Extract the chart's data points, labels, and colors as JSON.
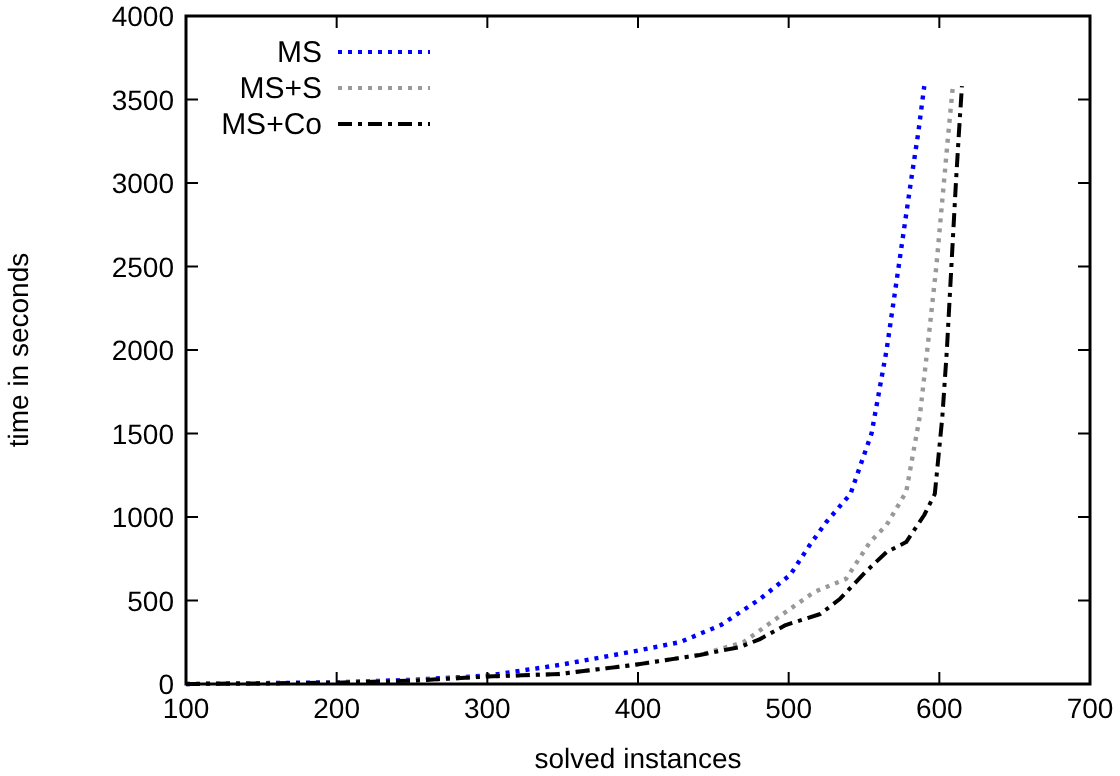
{
  "chart_data": {
    "type": "line",
    "xlabel": "solved instances",
    "ylabel": "time in seconds",
    "xlim": [
      100,
      700
    ],
    "ylim": [
      0,
      4000
    ],
    "xticks": [
      100,
      200,
      300,
      400,
      500,
      600,
      700
    ],
    "yticks": [
      0,
      500,
      1000,
      1500,
      2000,
      2500,
      3000,
      3500,
      4000
    ],
    "grid": false,
    "legend": "top left",
    "series": [
      {
        "name": "MS",
        "color": "#0000ff",
        "line_style": "dotted",
        "x": [
          100,
          200,
          250,
          300,
          348,
          400,
          428,
          455,
          481,
          501,
          514,
          525,
          541,
          555,
          565,
          573,
          581,
          586,
          590
        ],
        "values": [
          0,
          10,
          25,
          50,
          114,
          200,
          251,
          353,
          509,
          653,
          832,
          970,
          1138,
          1500,
          2000,
          2500,
          3000,
          3300,
          3580
        ]
      },
      {
        "name": "MS+S",
        "color": "#999999",
        "line_style": "dotted",
        "x": [
          100,
          200,
          250,
          300,
          348,
          397,
          441,
          470,
          490,
          517,
          538,
          554,
          565,
          578,
          587,
          592,
          598,
          603,
          606,
          609
        ],
        "values": [
          0,
          8,
          20,
          45,
          60,
          114,
          174,
          250,
          380,
          551,
          629,
          850,
          952,
          1150,
          1600,
          2000,
          2500,
          3000,
          3300,
          3580
        ]
      },
      {
        "name": "MS+Co",
        "color": "#000000",
        "line_style": "dashdot",
        "x": [
          100,
          200,
          250,
          300,
          348,
          397,
          441,
          468,
          481,
          498,
          521,
          534,
          551,
          565,
          578,
          590,
          597,
          602,
          605,
          608,
          611,
          613,
          615
        ],
        "values": [
          0,
          8,
          20,
          45,
          60,
          114,
          174,
          222,
          269,
          353,
          419,
          509,
          671,
          790,
          850,
          1012,
          1138,
          1600,
          2000,
          2500,
          3000,
          3300,
          3580
        ]
      }
    ]
  }
}
